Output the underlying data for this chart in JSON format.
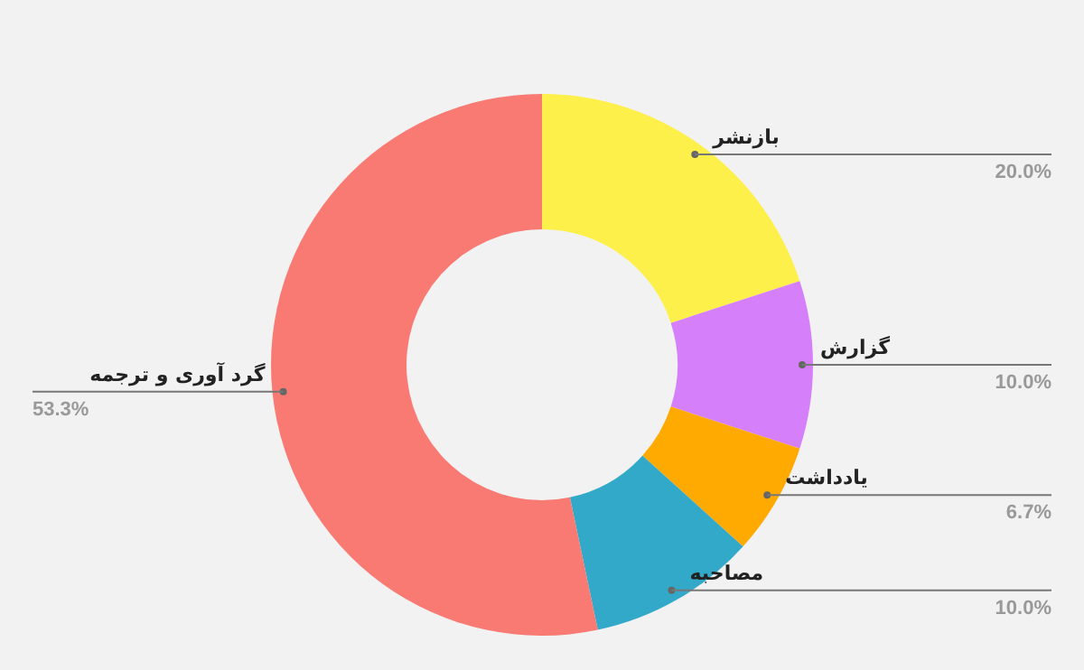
{
  "chart_data": {
    "type": "donut",
    "categories": [
      "بازنشر",
      "گزارش",
      "یادداشت",
      "مصاحبه",
      "گرد آوری و ترجمه"
    ],
    "values": [
      20.0,
      10.0,
      6.7,
      10.0,
      53.3
    ],
    "colors": [
      "#fdf04a",
      "#d580fa",
      "#ffaa00",
      "#33a9c9",
      "#f87a72"
    ],
    "value_labels": [
      "20.0%",
      "10.0%",
      "6.7%",
      "10.0%",
      "53.3%"
    ]
  }
}
